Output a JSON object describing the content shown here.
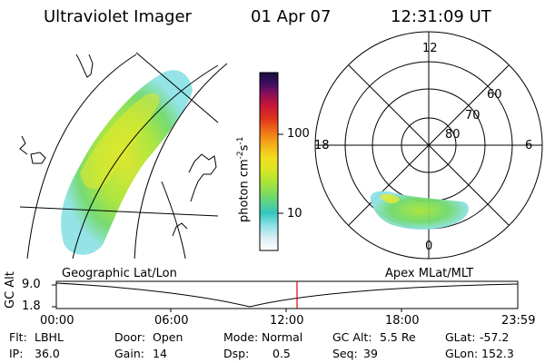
{
  "header": {
    "title": "Ultraviolet Imager",
    "date": "01 Apr 07",
    "time": "12:31:09 UT"
  },
  "colorbar": {
    "unit_label": "photon cm",
    "unit_sup1": "-2",
    "unit_mid": "s",
    "unit_sup2": "-1",
    "ticks": [
      "100",
      "10"
    ],
    "colors": [
      "#ffffff",
      "#d9eef3",
      "#8ee2e6",
      "#35c6c3",
      "#6fd96b",
      "#a8e437",
      "#d9e526",
      "#f2de1f",
      "#f5b21a",
      "#f17a17",
      "#e0341a",
      "#c4143a",
      "#8a0f5a",
      "#3a0f63",
      "#1a0c3a"
    ]
  },
  "polar_plot": {
    "mlt_labels": {
      "top": "12",
      "right": "6",
      "bottom": "0",
      "left": "18"
    },
    "lat_labels": [
      "60",
      "70",
      "80"
    ]
  },
  "lower_panel": {
    "left_title": "Geographic Lat/Lon",
    "right_title": "Apex MLat/MLT",
    "y_axis_label": "GC Alt",
    "y_ticks": [
      "9.0",
      "1.8"
    ],
    "x_ticks": [
      "00:00",
      "06:00",
      "12:00",
      "18:00",
      "23:59"
    ],
    "marker_color": "#e00000",
    "curve_color": "#000000"
  },
  "info": {
    "flt_label": "Flt:",
    "flt_value": "LBHL",
    "ip_label": "IP:",
    "ip_value": "36.0",
    "door_label": "Door:",
    "door_value": "Open",
    "gain_label": "Gain:",
    "gain_value": "14",
    "mode_label": "Mode:",
    "mode_value": "Normal",
    "dsp_label": "Dsp:",
    "dsp_value": "0.5",
    "gcalt_label": "GC Alt:",
    "gcalt_value": "5.5 Re",
    "seq_label": "Seq:",
    "seq_value": "39",
    "glat_label": "GLat:",
    "glat_value": "-57.2",
    "glon_label": "GLon:",
    "glon_value": "152.3"
  }
}
